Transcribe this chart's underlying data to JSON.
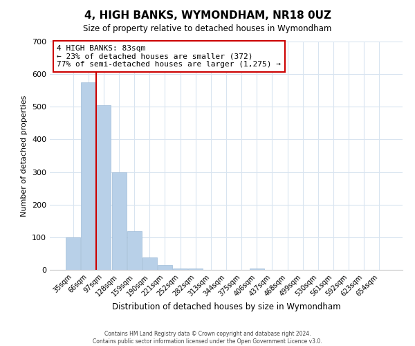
{
  "title": "4, HIGH BANKS, WYMONDHAM, NR18 0UZ",
  "subtitle": "Size of property relative to detached houses in Wymondham",
  "xlabel": "Distribution of detached houses by size in Wymondham",
  "ylabel": "Number of detached properties",
  "bar_labels": [
    "35sqm",
    "66sqm",
    "97sqm",
    "128sqm",
    "159sqm",
    "190sqm",
    "221sqm",
    "252sqm",
    "282sqm",
    "313sqm",
    "344sqm",
    "375sqm",
    "406sqm",
    "437sqm",
    "468sqm",
    "499sqm",
    "530sqm",
    "561sqm",
    "592sqm",
    "623sqm",
    "654sqm"
  ],
  "bar_heights": [
    100,
    575,
    505,
    300,
    118,
    38,
    14,
    5,
    5,
    0,
    0,
    0,
    5,
    0,
    0,
    0,
    0,
    0,
    0,
    0,
    0
  ],
  "bar_color": "#b8d0e8",
  "bar_edge_color": "#a0bcd8",
  "ylim": [
    0,
    700
  ],
  "yticks": [
    0,
    100,
    200,
    300,
    400,
    500,
    600,
    700
  ],
  "property_line_x": 1.5,
  "property_line_color": "#cc0000",
  "annotation_title": "4 HIGH BANKS: 83sqm",
  "annotation_line1": "← 23% of detached houses are smaller (372)",
  "annotation_line2": "77% of semi-detached houses are larger (1,275) →",
  "annotation_box_color": "#ffffff",
  "annotation_border_color": "#cc0000",
  "footer_line1": "Contains HM Land Registry data © Crown copyright and database right 2024.",
  "footer_line2": "Contains public sector information licensed under the Open Government Licence v3.0.",
  "grid_color": "#d8e4f0",
  "background_color": "#ffffff"
}
